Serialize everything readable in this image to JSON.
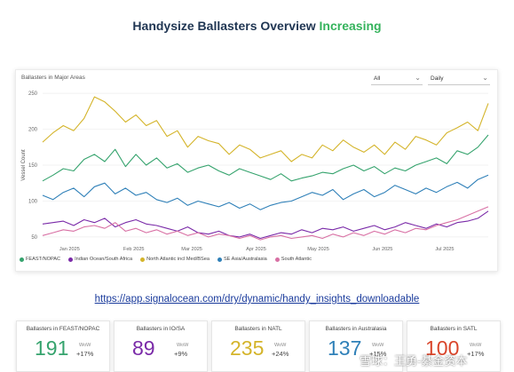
{
  "title": {
    "main": "Handysize Ballasters Overview",
    "accent": "Increasing"
  },
  "panel": {
    "title": "Ballasters in Major Areas",
    "filter_region": "All",
    "filter_period": "Daily",
    "ylabel": "Vessel Count"
  },
  "colors": {
    "title": "#1f3552",
    "accent": "#35b35c",
    "link": "#1a3b9c"
  },
  "chart_data": {
    "type": "line",
    "title": "Ballasters in Major Areas",
    "xlabel": "",
    "ylabel": "Vessel Count",
    "ylim": [
      40,
      260
    ],
    "yticks": [
      50,
      100,
      150,
      200,
      250
    ],
    "grid": true,
    "legend_position": "bottom-left",
    "x_tick_labels": [
      "Jan 2025",
      "Feb 2025",
      "Mar 2025",
      "Apr 2025",
      "May 2025",
      "Jun 2025",
      "Jul 2025"
    ],
    "x_tick_positions": [
      13,
      44,
      72,
      103,
      133,
      164,
      194
    ],
    "x": [
      0,
      5,
      10,
      15,
      20,
      25,
      30,
      35,
      40,
      45,
      50,
      55,
      60,
      65,
      70,
      75,
      80,
      85,
      90,
      95,
      100,
      105,
      110,
      115,
      120,
      125,
      130,
      135,
      140,
      145,
      150,
      155,
      160,
      165,
      170,
      175,
      180,
      185,
      190,
      195,
      200,
      205,
      210,
      215
    ],
    "series": [
      {
        "name": "FEAST/NOPAC",
        "color": "#35a36d",
        "values": [
          128,
          136,
          145,
          142,
          158,
          165,
          155,
          172,
          148,
          165,
          150,
          160,
          146,
          152,
          140,
          146,
          150,
          142,
          136,
          145,
          140,
          135,
          130,
          138,
          128,
          132,
          135,
          140,
          138,
          145,
          150,
          142,
          148,
          138,
          146,
          142,
          150,
          155,
          160,
          152,
          170,
          165,
          175,
          192
        ]
      },
      {
        "name": "Indian Ocean/South Africa",
        "color": "#7a2aa8",
        "values": [
          68,
          70,
          72,
          66,
          74,
          70,
          76,
          64,
          70,
          74,
          68,
          66,
          62,
          58,
          64,
          56,
          54,
          58,
          52,
          50,
          54,
          48,
          52,
          56,
          54,
          60,
          56,
          62,
          60,
          64,
          58,
          62,
          66,
          60,
          64,
          70,
          66,
          62,
          68,
          64,
          70,
          72,
          76,
          86
        ]
      },
      {
        "name": "North Atlantic incl Med/BSea",
        "color": "#d4b42a",
        "values": [
          182,
          195,
          205,
          198,
          215,
          245,
          238,
          225,
          210,
          220,
          205,
          212,
          190,
          198,
          175,
          190,
          184,
          180,
          165,
          178,
          172,
          160,
          165,
          170,
          155,
          165,
          160,
          178,
          170,
          185,
          175,
          168,
          178,
          165,
          182,
          172,
          190,
          185,
          178,
          195,
          202,
          210,
          198,
          236
        ]
      },
      {
        "name": "SE Asia/Australasia",
        "color": "#2f80b8",
        "values": [
          108,
          102,
          112,
          118,
          106,
          120,
          125,
          110,
          118,
          108,
          112,
          102,
          98,
          104,
          94,
          100,
          96,
          92,
          98,
          90,
          96,
          88,
          94,
          98,
          100,
          106,
          112,
          108,
          116,
          102,
          110,
          116,
          106,
          112,
          122,
          116,
          110,
          118,
          112,
          120,
          126,
          118,
          130,
          136
        ]
      },
      {
        "name": "South Atlantic",
        "color": "#d870a4",
        "values": [
          52,
          56,
          60,
          58,
          64,
          66,
          62,
          70,
          58,
          62,
          56,
          60,
          54,
          58,
          52,
          56,
          50,
          54,
          52,
          48,
          52,
          46,
          50,
          52,
          48,
          50,
          52,
          48,
          54,
          50,
          56,
          52,
          58,
          54,
          60,
          56,
          62,
          60,
          66,
          70,
          74,
          80,
          86,
          92
        ]
      }
    ]
  },
  "link": {
    "text": "https://app.signalocean.com/dry/dynamic/handy_insights_downloadable"
  },
  "cards": [
    {
      "title": "Ballasters in FEAST/NOPAC",
      "value": "191",
      "wow_label": "WoW",
      "wow": "+17%",
      "color": "#35a36d"
    },
    {
      "title": "Ballasters in IO/SA",
      "value": "89",
      "wow_label": "WoW",
      "wow": "+9%",
      "color": "#7a2aa8"
    },
    {
      "title": "Ballasters in NATL",
      "value": "235",
      "wow_label": "WoW",
      "wow": "+24%",
      "color": "#d4b42a"
    },
    {
      "title": "Ballasters in Australasia",
      "value": "137",
      "wow_label": "WoW",
      "wow": "+15%",
      "color": "#2f80b8"
    },
    {
      "title": "Ballasters in SATL",
      "value": "100",
      "wow_label": "WoW",
      "wow": "+17%",
      "color": "#d9452b"
    }
  ],
  "watermark": "雪球：王勇-綦金资本"
}
